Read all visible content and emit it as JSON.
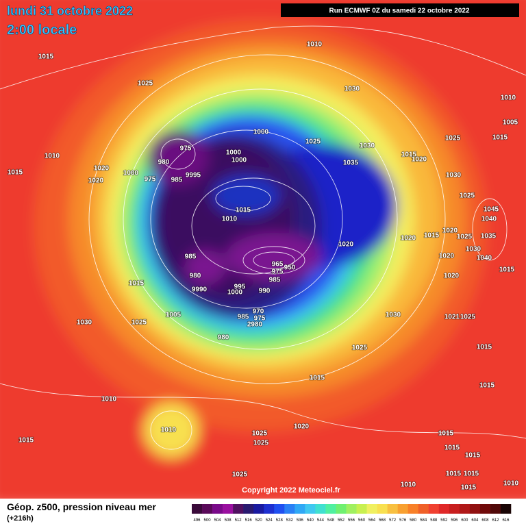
{
  "header": {
    "title": "lundi 31 octobre 2022",
    "time": "2:00 locale",
    "run": "Run ECMWF 0Z du samedi 22 octobre 2022"
  },
  "map": {
    "pressure_labels": [
      1015,
      1010,
      1025,
      1030,
      1010,
      1005,
      1015,
      1000,
      1025,
      1030,
      975,
      1000,
      1000,
      1010,
      980,
      1020,
      1000,
      975,
      985,
      9995,
      1015,
      1020,
      1035,
      1015,
      1020,
      1030,
      1025,
      1025,
      1015,
      1010,
      1045,
      1040,
      1020,
      1025,
      1035,
      1015,
      1020,
      1020,
      985,
      965,
      975,
      950,
      985,
      1030,
      1040,
      1020,
      1015,
      980,
      1020,
      1015,
      995,
      1000,
      9990,
      990,
      1005,
      970,
      985,
      975,
      2980,
      1021,
      1025,
      1030,
      1030,
      1025,
      980,
      1025,
      1015,
      1015,
      1015,
      1010,
      1010,
      1020,
      1015,
      1025,
      1025,
      1015,
      1015,
      1015,
      1015,
      1015,
      1025,
      1010,
      1015,
      1010
    ],
    "copyright": "Copyright 2022 Meteociel.fr"
  },
  "footer": {
    "title": "Géop. z500, pression niveau mer",
    "lead": "(+216h)",
    "legend": {
      "levels": [
        496,
        500,
        504,
        508,
        512,
        516,
        520,
        524,
        528,
        532,
        536,
        540,
        544,
        548,
        552,
        556,
        560,
        564,
        568,
        572,
        576,
        580,
        584,
        588,
        592,
        596,
        600,
        604,
        608,
        612,
        616
      ],
      "colors": [
        "#3a0a3a",
        "#5a0a5a",
        "#7a0a8a",
        "#9a10a0",
        "#501060",
        "#2a1a70",
        "#1a1aa0",
        "#1e30d0",
        "#2050f0",
        "#2a80f5",
        "#30a8f5",
        "#40c8f0",
        "#40e0d0",
        "#50f0a0",
        "#70f070",
        "#a0f060",
        "#c8f050",
        "#f0f060",
        "#f8e050",
        "#f8c040",
        "#f8a030",
        "#f88028",
        "#f06028",
        "#f04030",
        "#e02828",
        "#c81e1e",
        "#b01818",
        "#901010",
        "#700a0a",
        "#500808",
        "#1a0505"
      ]
    }
  }
}
